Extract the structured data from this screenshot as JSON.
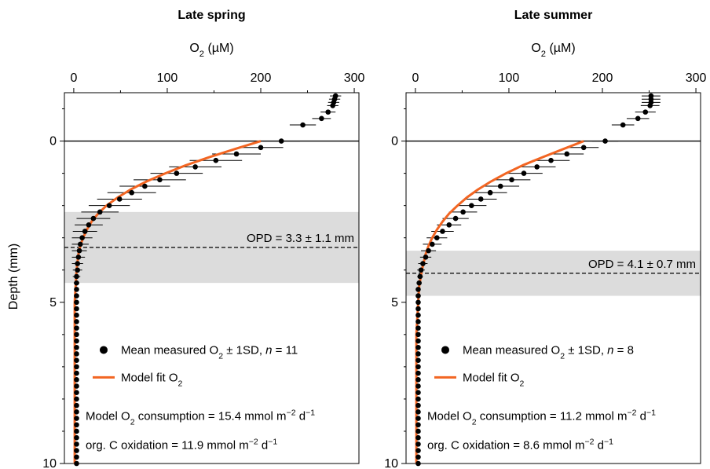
{
  "figure": {
    "ylabel": "Depth (mm)"
  },
  "chart_data": [
    {
      "type": "scatter",
      "title": "Late spring",
      "xlabel": "O₂ (µM)",
      "xlim": [
        -10,
        305
      ],
      "ylim": [
        10,
        -1.5
      ],
      "xticks": [
        0,
        100,
        200,
        300
      ],
      "yticks": [
        0,
        5,
        10
      ],
      "reference_line_depth": 0,
      "opd": {
        "value": 3.3,
        "sd": 1.1,
        "label": "OPD = 3.3 ± 1.1 mm"
      },
      "legend": {
        "measured": "Mean measured O₂ ± 1SD, n = 11",
        "model": "Model fit O₂"
      },
      "notes": [
        "Model O₂ consumption = 15.4 mmol m⁻² d⁻¹",
        "org. C oxidation = 11.9 mmol m⁻² d⁻¹"
      ],
      "colors": {
        "model": "#f26522",
        "points": "#000000",
        "band": "#dcdcdc"
      },
      "measured": {
        "depth_mm": [
          -1.4,
          -1.3,
          -1.2,
          -1.1,
          -0.9,
          -0.7,
          -0.5,
          0,
          0.2,
          0.4,
          0.6,
          0.8,
          1.0,
          1.2,
          1.4,
          1.6,
          1.8,
          2.0,
          2.2,
          2.4,
          2.6,
          2.8,
          3.0,
          3.2,
          3.4,
          3.6,
          3.8,
          4.0,
          4.2,
          4.4,
          4.6,
          4.8,
          5.0,
          5.2,
          5.4,
          5.6,
          5.8,
          6.0,
          6.2,
          6.4,
          6.6,
          6.8,
          7.0,
          7.2,
          7.4,
          7.6,
          7.8,
          8.0,
          8.2,
          8.4,
          8.6,
          8.8,
          9.0,
          9.2,
          9.4,
          9.6,
          9.8,
          10.0
        ],
        "o2_uM": [
          280,
          279,
          278,
          277,
          272,
          265,
          245,
          222,
          200,
          174,
          152,
          130,
          110,
          92,
          76,
          62,
          49,
          38,
          28,
          21,
          16,
          12,
          9,
          7,
          6,
          5,
          4,
          4,
          3,
          3,
          3,
          3,
          3,
          3,
          3,
          3,
          3,
          3,
          3,
          3,
          3,
          3,
          3,
          3,
          3,
          3,
          3,
          3,
          3,
          3,
          3,
          3,
          3,
          3,
          3,
          3,
          3,
          3
        ],
        "sd_uM": [
          6,
          6,
          6,
          6,
          8,
          10,
          14,
          20,
          24,
          26,
          28,
          28,
          28,
          28,
          27,
          26,
          24,
          22,
          20,
          18,
          15,
          13,
          11,
          9,
          8,
          7,
          6,
          5,
          4,
          3,
          2,
          1,
          0,
          0,
          0,
          0,
          0,
          0,
          0,
          0,
          0,
          0,
          0,
          0,
          0,
          0,
          0,
          0,
          0,
          0,
          0,
          0,
          0,
          0,
          0,
          0,
          0,
          0
        ]
      },
      "model": {
        "depth_mm": [
          0,
          0.25,
          0.5,
          0.75,
          1.0,
          1.25,
          1.5,
          1.75,
          2.0,
          2.25,
          2.5,
          2.75,
          3.0,
          3.25,
          3.5,
          3.75,
          4.0,
          4.5,
          5.0,
          6.0,
          7.0,
          8.0,
          9.0,
          10.0
        ],
        "o2_uM": [
          200,
          172,
          145,
          120,
          98,
          78,
          61,
          47,
          35,
          26,
          19,
          14,
          10,
          7,
          5,
          4,
          3,
          2,
          1,
          1,
          1,
          1,
          1,
          1
        ]
      }
    },
    {
      "type": "scatter",
      "title": "Late summer",
      "xlabel": "O₂ (µM)",
      "xlim": [
        -10,
        305
      ],
      "ylim": [
        10,
        -1.5
      ],
      "xticks": [
        0,
        100,
        200,
        300
      ],
      "yticks": [
        0,
        5,
        10
      ],
      "reference_line_depth": 0,
      "opd": {
        "value": 4.1,
        "sd": 0.7,
        "label": "OPD = 4.1 ± 0.7 mm"
      },
      "legend": {
        "measured": "Mean measured O₂ ± 1SD, n = 8",
        "model": "Model fit O₂"
      },
      "notes": [
        "Model O₂ consumption = 11.2 mmol m⁻² d⁻¹",
        "org. C oxidation = 8.6 mmol m⁻² d⁻¹"
      ],
      "colors": {
        "model": "#f26522",
        "points": "#000000",
        "band": "#dcdcdc"
      },
      "measured": {
        "depth_mm": [
          -1.4,
          -1.3,
          -1.2,
          -1.1,
          -0.9,
          -0.7,
          -0.5,
          0,
          0.2,
          0.4,
          0.6,
          0.8,
          1.0,
          1.2,
          1.4,
          1.6,
          1.8,
          2.0,
          2.2,
          2.4,
          2.6,
          2.8,
          3.0,
          3.2,
          3.4,
          3.6,
          3.8,
          4.0,
          4.2,
          4.4,
          4.6,
          4.8,
          5.0,
          5.2,
          5.4,
          5.6,
          5.8,
          6.0,
          6.2,
          6.4,
          6.6,
          6.8,
          7.0,
          7.2,
          7.4,
          7.6,
          7.8,
          8.0,
          8.2,
          8.4,
          8.6,
          8.8,
          9.0,
          9.2,
          9.4,
          9.6,
          9.8,
          10.0
        ],
        "o2_uM": [
          252,
          252,
          252,
          251,
          246,
          238,
          222,
          203,
          180,
          162,
          145,
          130,
          116,
          103,
          91,
          80,
          70,
          60,
          51,
          43,
          36,
          29,
          23,
          18,
          14,
          11,
          8,
          6,
          5,
          4,
          3,
          3,
          3,
          3,
          3,
          3,
          3,
          3,
          3,
          3,
          3,
          3,
          3,
          3,
          3,
          3,
          3,
          3,
          3,
          3,
          3,
          3,
          3,
          3,
          3,
          3,
          3,
          3
        ],
        "sd_uM": [
          10,
          10,
          10,
          10,
          11,
          12,
          12,
          14,
          16,
          18,
          20,
          20,
          20,
          20,
          20,
          18,
          17,
          16,
          15,
          14,
          13,
          12,
          11,
          10,
          8,
          6,
          5,
          4,
          3,
          2,
          1,
          0,
          0,
          0,
          0,
          0,
          0,
          0,
          0,
          0,
          0,
          0,
          0,
          0,
          0,
          0,
          0,
          0,
          0,
          0,
          0,
          0,
          0,
          0,
          0,
          0,
          0,
          0
        ]
      },
      "model": {
        "depth_mm": [
          0,
          0.25,
          0.5,
          0.75,
          1.0,
          1.25,
          1.5,
          1.75,
          2.0,
          2.25,
          2.5,
          2.75,
          3.0,
          3.25,
          3.5,
          3.75,
          4.0,
          4.5,
          5.0,
          6.0,
          7.0,
          8.0,
          9.0,
          10.0
        ],
        "o2_uM": [
          180,
          158,
          136,
          115,
          97,
          81,
          67,
          55,
          45,
          36,
          29,
          23,
          18,
          14,
          11,
          9,
          7,
          4,
          3,
          1,
          1,
          1,
          1,
          1
        ]
      }
    }
  ]
}
